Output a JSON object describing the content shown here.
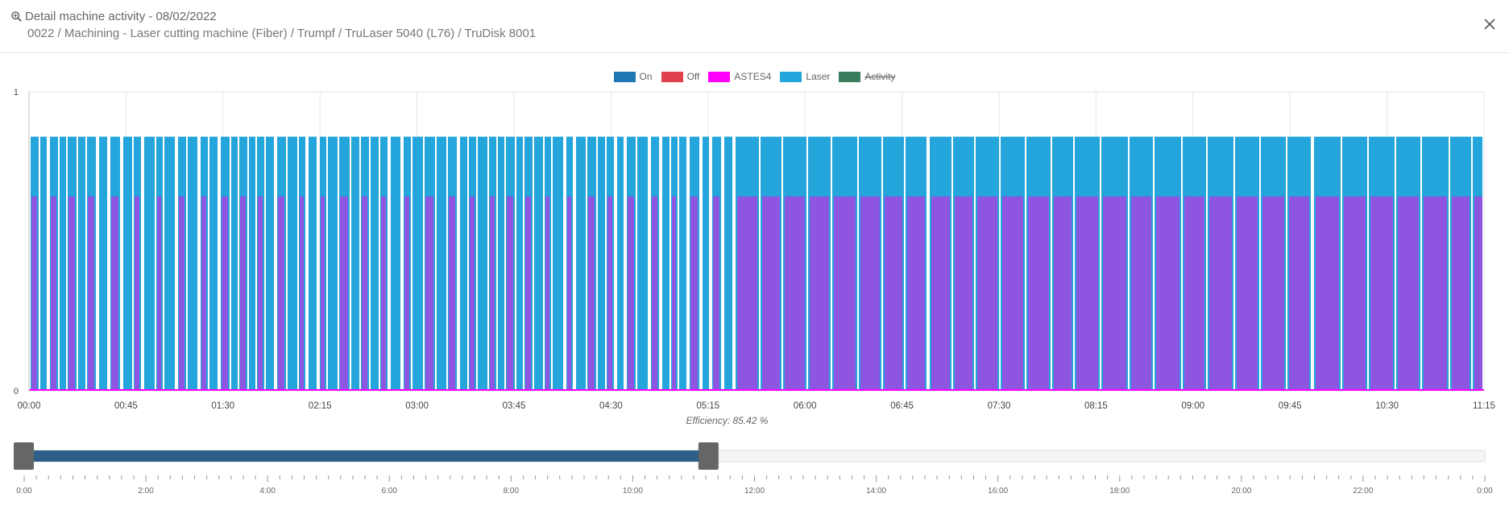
{
  "header": {
    "icon": "zoom-in-icon",
    "title": "Detail machine activity - 08/02/2022",
    "subtitle": "0022 / Machining - Laser cutting machine (Fiber) / Trumpf / TruLaser 5040 (L76) / TruDisk 8001",
    "close_icon": "close-icon"
  },
  "colors": {
    "on": "#1f77b4",
    "off": "#e0404c",
    "astes4": "#ff00ff",
    "laser": "#24a5db",
    "activity": "#3a7d5c",
    "overlap": "#8e55e0",
    "slider_fill": "#2e5e8a",
    "handle": "#666666"
  },
  "legend": [
    {
      "label": "On",
      "color": "#1f77b4",
      "hidden": false
    },
    {
      "label": "Off",
      "color": "#e0404c",
      "hidden": false
    },
    {
      "label": "ASTES4",
      "color": "#ff00ff",
      "hidden": false
    },
    {
      "label": "Laser",
      "color": "#24a5db",
      "hidden": false
    },
    {
      "label": "Activity",
      "color": "#3a7d5c",
      "hidden": true
    }
  ],
  "chart_data": {
    "type": "bar",
    "y_ticks": [
      "1",
      "0"
    ],
    "ylim": [
      0,
      1
    ],
    "x_tick_labels": [
      "00:00",
      "00:45",
      "01:30",
      "02:15",
      "03:00",
      "03:45",
      "04:30",
      "05:15",
      "06:00",
      "06:45",
      "07:30",
      "08:15",
      "09:00",
      "09:45",
      "10:30",
      "11:15"
    ],
    "xlim_hours": [
      0,
      11.25
    ],
    "grid": true,
    "series": [
      {
        "name": "Laser",
        "level": 0.85,
        "duty": 0.85
      },
      {
        "name": "ASTES4",
        "level": 0.65
      }
    ]
  },
  "efficiency": "Efficiency: 85.42 %",
  "slider": {
    "range_start": "0:00",
    "range_end": "11:15",
    "selected_fraction": 0.46875,
    "tick_labels": [
      "0:00",
      "2:00",
      "4:00",
      "6:00",
      "8:00",
      "10:00",
      "12:00",
      "14:00",
      "16:00",
      "18:00",
      "20:00",
      "22:00",
      "0:00"
    ]
  }
}
